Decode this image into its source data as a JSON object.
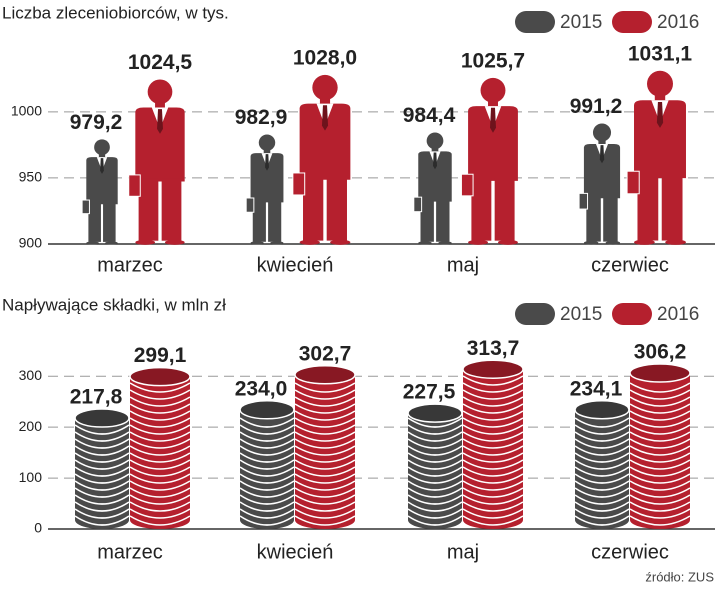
{
  "chart_data": [
    {
      "type": "pictograph",
      "title": "Liczba zleceniobiorców, w tys.",
      "categories": [
        "marzec",
        "kwiecień",
        "maj",
        "czerwiec"
      ],
      "series": [
        {
          "name": "2015",
          "color": "#4a4a4a",
          "values": [
            979.2,
            982.9,
            984.4,
            991.2
          ],
          "value_labels": [
            "979,2",
            "982,9",
            "984,4",
            "991,2"
          ]
        },
        {
          "name": "2016",
          "color": "#b5202e",
          "values": [
            1024.5,
            1028.0,
            1025.7,
            1031.1
          ],
          "value_labels": [
            "1024,5",
            "1028,0",
            "1025,7",
            "1031,1"
          ]
        }
      ],
      "ylim": [
        900,
        1040
      ],
      "yticks": [
        900,
        950,
        1000
      ],
      "grid": true,
      "legend": "top-right"
    },
    {
      "type": "pictograph",
      "title": "Napływające składki, w mln zł",
      "categories": [
        "marzec",
        "kwiecień",
        "maj",
        "czerwiec"
      ],
      "series": [
        {
          "name": "2015",
          "color": "#4a4a4a",
          "values": [
            217.8,
            234.0,
            227.5,
            234.1
          ],
          "value_labels": [
            "217,8",
            "234,0",
            "227,5",
            "234,1"
          ]
        },
        {
          "name": "2016",
          "color": "#b5202e",
          "values": [
            299.1,
            302.7,
            313.7,
            306.2
          ],
          "value_labels": [
            "299,1",
            "302,7",
            "313,7",
            "306,2"
          ]
        }
      ],
      "ylim": [
        0,
        320
      ],
      "yticks": [
        0,
        100,
        200,
        300
      ],
      "grid": true,
      "legend": "top-right"
    }
  ],
  "source": "źródło: ZUS"
}
